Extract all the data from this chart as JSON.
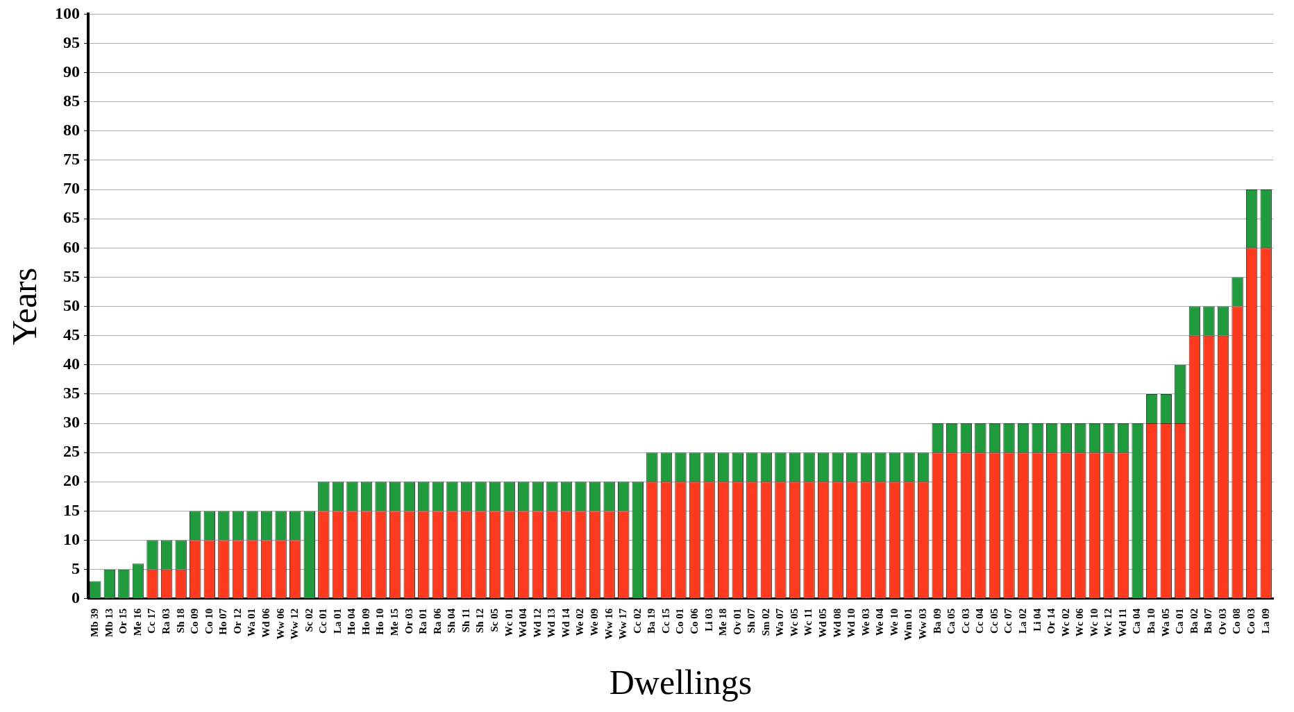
{
  "chart_data": {
    "type": "bar",
    "stacked": true,
    "xlabel": "Dwellings",
    "ylabel": "Years",
    "categories": [
      "Mb 39",
      "Mb 13",
      "Or 15",
      "Me 16",
      "Cc 17",
      "Ra 03",
      "Sh 18",
      "Co 09",
      "Co 10",
      "Ho 07",
      "Or 12",
      "Wa 01",
      "Wd 06",
      "Ww 06",
      "Ww 12",
      "Sc 02",
      "Cc 01",
      "La 01",
      "Ho 04",
      "Ho 09",
      "Ho 10",
      "Me 15",
      "Or 03",
      "Ra 01",
      "Ra 06",
      "Sh 04",
      "Sh 11",
      "Sh 12",
      "Sc 05",
      "Wc 01",
      "Wd 04",
      "Wd 12",
      "Wd 13",
      "Wd 14",
      "We 02",
      "We 09",
      "Ww 16",
      "Ww 17",
      "Cc 02",
      "Ba 19",
      "Cc 15",
      "Co 01",
      "Co 06",
      "Li 03",
      "Me 18",
      "Ov 01",
      "Sh 07",
      "Sm 02",
      "Wa 07",
      "Wc 05",
      "Wc 11",
      "Wd 05",
      "Wd 08",
      "Wd 10",
      "We 03",
      "We 04",
      "We 10",
      "Wm 01",
      "Ww 03",
      "Ba 09",
      "Ca 05",
      "Cc 03",
      "Cc 04",
      "Cc 05",
      "Cc 07",
      "La 02",
      "Li 04",
      "Or 14",
      "Wc 02",
      "Wc 06",
      "Wc 10",
      "Wc 12",
      "Wd 11",
      "Ca 04",
      "Ba 10",
      "Wa 05",
      "Ca 01",
      "Ba 02",
      "Ba 07",
      "Ov 03",
      "Co 08",
      "Co 03",
      "La 09"
    ],
    "series": [
      {
        "color": "#ff3b1f",
        "values": [
          null,
          null,
          null,
          null,
          5,
          5,
          5,
          10,
          10,
          10,
          10,
          10,
          10,
          10,
          10,
          null,
          15,
          15,
          15,
          15,
          15,
          15,
          15,
          15,
          15,
          15,
          15,
          15,
          15,
          15,
          15,
          15,
          15,
          15,
          15,
          15,
          15,
          15,
          null,
          20,
          20,
          20,
          20,
          20,
          20,
          20,
          20,
          20,
          20,
          20,
          20,
          20,
          20,
          20,
          20,
          20,
          20,
          20,
          20,
          25,
          25,
          25,
          25,
          25,
          25,
          25,
          25,
          25,
          25,
          25,
          25,
          25,
          25,
          null,
          30,
          30,
          30,
          45,
          45,
          45,
          50,
          60,
          60
        ]
      },
      {
        "color": "#1f9a3c",
        "values": [
          3,
          5,
          5,
          6,
          5,
          5,
          5,
          5,
          5,
          5,
          5,
          5,
          5,
          5,
          5,
          15,
          5,
          5,
          5,
          5,
          5,
          5,
          5,
          5,
          5,
          5,
          5,
          5,
          5,
          5,
          5,
          5,
          5,
          5,
          5,
          5,
          5,
          5,
          20,
          5,
          5,
          5,
          5,
          5,
          5,
          5,
          5,
          5,
          5,
          5,
          5,
          5,
          5,
          5,
          5,
          5,
          5,
          5,
          5,
          5,
          5,
          5,
          5,
          5,
          5,
          5,
          5,
          5,
          5,
          5,
          5,
          5,
          5,
          30,
          5,
          5,
          10,
          5,
          5,
          5,
          5,
          10,
          10
        ]
      }
    ],
    "ylim": [
      0,
      100
    ],
    "yticks": [
      0,
      5,
      10,
      15,
      20,
      25,
      30,
      35,
      40,
      45,
      50,
      55,
      60,
      65,
      70,
      75,
      80,
      85,
      90,
      95,
      100
    ],
    "grid": "y",
    "legend": false
  }
}
